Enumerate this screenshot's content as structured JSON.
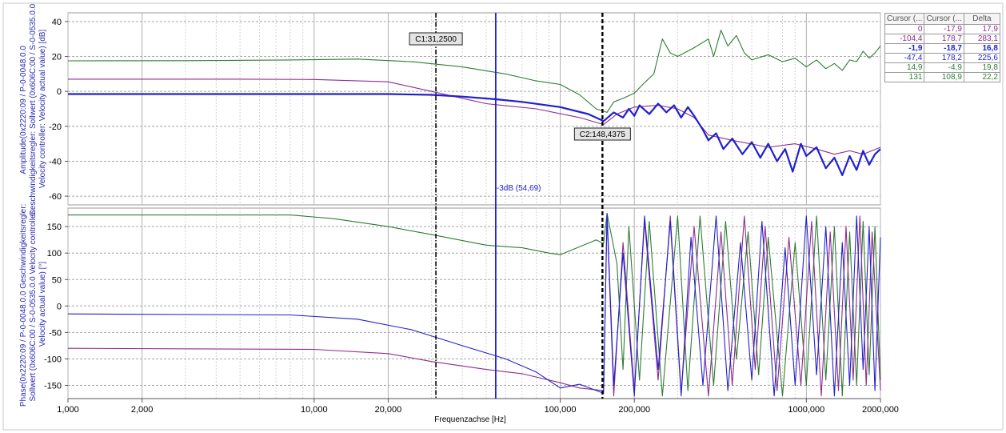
{
  "chart_data": [
    {
      "type": "line",
      "id": "amplitude",
      "x_scale": "log",
      "xlim": [
        1,
        2000
      ],
      "ylim": [
        -65,
        45
      ],
      "y_ticks": [
        40,
        20,
        0,
        -20,
        -40,
        -60
      ],
      "ylabel_lines": [
        "Amplitude(0x2220:09 / P-0-0048.0.0",
        "Geschwindigkeitsregler: Sollwert (0x606C:00 / S-0-0535.0.0",
        "Velocity controller: Velocity actual value) [dB]"
      ],
      "annotation_3db": "-3dB (54,69)",
      "series": [
        {
          "color": "#2e7d32",
          "points": [
            [
              1,
              17.5
            ],
            [
              3,
              17.6
            ],
            [
              8,
              18
            ],
            [
              15,
              18.5
            ],
            [
              25,
              17
            ],
            [
              40,
              14
            ],
            [
              60,
              10
            ],
            [
              80,
              6
            ],
            [
              100,
              4
            ],
            [
              120,
              -2
            ],
            [
              140,
              -10
            ],
            [
              155,
              -12
            ],
            [
              165,
              -6
            ],
            [
              180,
              -4
            ],
            [
              200,
              -1
            ],
            [
              220,
              5
            ],
            [
              240,
              10
            ],
            [
              260,
              30
            ],
            [
              280,
              22
            ],
            [
              300,
              20
            ],
            [
              350,
              25
            ],
            [
              400,
              30
            ],
            [
              420,
              20
            ],
            [
              450,
              35
            ],
            [
              480,
              26
            ],
            [
              520,
              32
            ],
            [
              560,
              22
            ],
            [
              600,
              18
            ],
            [
              700,
              21
            ],
            [
              800,
              17
            ],
            [
              900,
              19
            ],
            [
              1000,
              14
            ],
            [
              1100,
              18
            ],
            [
              1200,
              13
            ],
            [
              1300,
              16
            ],
            [
              1400,
              12
            ],
            [
              1500,
              18
            ],
            [
              1600,
              17
            ],
            [
              1700,
              23
            ],
            [
              1800,
              19
            ],
            [
              1900,
              22
            ],
            [
              2000,
              26
            ]
          ]
        },
        {
          "color": "#8e2d8e",
          "points": [
            [
              1,
              7
            ],
            [
              5,
              7
            ],
            [
              10,
              6.8
            ],
            [
              20,
              5.5
            ],
            [
              30,
              0
            ],
            [
              50,
              -7
            ],
            [
              80,
              -10
            ],
            [
              120,
              -15
            ],
            [
              150,
              -19
            ],
            [
              170,
              -13
            ],
            [
              200,
              -9
            ],
            [
              250,
              -8
            ],
            [
              300,
              -10
            ],
            [
              350,
              -15
            ],
            [
              400,
              -25
            ],
            [
              500,
              -28
            ],
            [
              700,
              -32
            ],
            [
              900,
              -30
            ],
            [
              1100,
              -33
            ],
            [
              1300,
              -36
            ],
            [
              1500,
              -34
            ],
            [
              1700,
              -36
            ],
            [
              2000,
              -32
            ]
          ]
        },
        {
          "color": "#2020d0",
          "width": 2.2,
          "points": [
            [
              1,
              -1.5
            ],
            [
              20,
              -1.5
            ],
            [
              30,
              -2
            ],
            [
              40,
              -3
            ],
            [
              54.69,
              -4.5
            ],
            [
              70,
              -6
            ],
            [
              100,
              -9
            ],
            [
              130,
              -13
            ],
            [
              150,
              -17
            ],
            [
              165,
              -12
            ],
            [
              180,
              -15
            ],
            [
              190,
              -10
            ],
            [
              200,
              -14
            ],
            [
              210,
              -8
            ],
            [
              230,
              -13
            ],
            [
              250,
              -7
            ],
            [
              270,
              -12
            ],
            [
              290,
              -8
            ],
            [
              310,
              -15
            ],
            [
              330,
              -9
            ],
            [
              350,
              -14
            ],
            [
              380,
              -22
            ],
            [
              400,
              -28
            ],
            [
              430,
              -24
            ],
            [
              460,
              -33
            ],
            [
              500,
              -27
            ],
            [
              550,
              -36
            ],
            [
              600,
              -29
            ],
            [
              650,
              -38
            ],
            [
              700,
              -30
            ],
            [
              760,
              -40
            ],
            [
              820,
              -33
            ],
            [
              880,
              -46
            ],
            [
              950,
              -30
            ],
            [
              1000,
              -37
            ],
            [
              1100,
              -32
            ],
            [
              1200,
              -44
            ],
            [
              1300,
              -38
            ],
            [
              1400,
              -48
            ],
            [
              1500,
              -37
            ],
            [
              1600,
              -45
            ],
            [
              1700,
              -34
            ],
            [
              1800,
              -42
            ],
            [
              1900,
              -36
            ],
            [
              2000,
              -33
            ]
          ]
        }
      ]
    },
    {
      "type": "line",
      "id": "phase",
      "x_scale": "log",
      "xlim": [
        1,
        2000
      ],
      "ylim": [
        -175,
        185
      ],
      "y_ticks": [
        150,
        100,
        50,
        0,
        -50,
        -100,
        -150
      ],
      "xlabel": "Frequenzachse [Hz]",
      "x_ticks": [
        [
          1,
          "1,000"
        ],
        [
          2,
          "2,000"
        ],
        [
          10,
          "10,000"
        ],
        [
          20,
          "20,000"
        ],
        [
          100,
          "100,000"
        ],
        [
          200,
          "200,000"
        ],
        [
          1000,
          "1000,000"
        ],
        [
          2000,
          "2000,000"
        ]
      ],
      "ylabel_lines": [
        "Phase(0x2220:09 / P-0-0048.0.0 Geschwindigkeitsregler:",
        "Sollwert (0x606C:00 / S-0-0535.0.0 Velocity controller:",
        "Velocity actual value) [°]"
      ],
      "series": [
        {
          "color": "#2e7d32",
          "points": [
            [
              1,
              172
            ],
            [
              8,
              172
            ],
            [
              12,
              165
            ],
            [
              20,
              150
            ],
            [
              30,
              135
            ],
            [
              50,
              115
            ],
            [
              70,
              110
            ],
            [
              90,
              100
            ],
            [
              100,
              97
            ],
            [
              120,
              112
            ],
            [
              140,
              125
            ],
            [
              150,
              118
            ],
            [
              155,
              175
            ],
            [
              170,
              80
            ],
            [
              180,
              -120
            ],
            [
              190,
              150
            ],
            [
              210,
              -140
            ],
            [
              230,
              160
            ],
            [
              260,
              -170
            ],
            [
              300,
              170
            ],
            [
              330,
              -160
            ],
            [
              370,
              170
            ],
            [
              420,
              -150
            ],
            [
              470,
              160
            ],
            [
              520,
              -100
            ],
            [
              580,
              140
            ],
            [
              640,
              -130
            ],
            [
              700,
              130
            ],
            [
              800,
              -170
            ],
            [
              900,
              120
            ],
            [
              1000,
              -150
            ],
            [
              1100,
              170
            ],
            [
              1200,
              -140
            ],
            [
              1300,
              150
            ],
            [
              1400,
              -170
            ],
            [
              1500,
              140
            ],
            [
              1600,
              -150
            ],
            [
              1700,
              160
            ],
            [
              1800,
              -130
            ],
            [
              1900,
              150
            ],
            [
              2000,
              -140
            ]
          ]
        },
        {
          "color": "#8e2d8e",
          "points": [
            [
              1,
              -80
            ],
            [
              10,
              -82
            ],
            [
              20,
              -90
            ],
            [
              30,
              -105
            ],
            [
              50,
              -120
            ],
            [
              70,
              -128
            ],
            [
              100,
              -145
            ],
            [
              120,
              -155
            ],
            [
              150,
              -160
            ],
            [
              155,
              170
            ],
            [
              165,
              -170
            ],
            [
              180,
              120
            ],
            [
              200,
              -160
            ],
            [
              220,
              160
            ],
            [
              250,
              -140
            ],
            [
              280,
              170
            ],
            [
              310,
              -165
            ],
            [
              350,
              150
            ],
            [
              400,
              -170
            ],
            [
              450,
              140
            ],
            [
              500,
              -150
            ],
            [
              560,
              170
            ],
            [
              620,
              -120
            ],
            [
              680,
              150
            ],
            [
              760,
              -160
            ],
            [
              850,
              130
            ],
            [
              950,
              -150
            ],
            [
              1050,
              160
            ],
            [
              1150,
              -170
            ],
            [
              1250,
              140
            ],
            [
              1350,
              -160
            ],
            [
              1450,
              150
            ],
            [
              1550,
              -140
            ],
            [
              1650,
              170
            ],
            [
              1750,
              -150
            ],
            [
              1850,
              140
            ],
            [
              2000,
              -160
            ]
          ]
        },
        {
          "color": "#2020d0",
          "points": [
            [
              1,
              -15
            ],
            [
              8,
              -17
            ],
            [
              15,
              -25
            ],
            [
              25,
              -45
            ],
            [
              40,
              -75
            ],
            [
              60,
              -100
            ],
            [
              80,
              -125
            ],
            [
              100,
              -155
            ],
            [
              120,
              -148
            ],
            [
              150,
              -165
            ],
            [
              155,
              175
            ],
            [
              165,
              -150
            ],
            [
              180,
              100
            ],
            [
              200,
              -170
            ],
            [
              220,
              170
            ],
            [
              250,
              -120
            ],
            [
              280,
              160
            ],
            [
              310,
              -170
            ],
            [
              340,
              130
            ],
            [
              380,
              -150
            ],
            [
              430,
              170
            ],
            [
              480,
              -160
            ],
            [
              540,
              120
            ],
            [
              600,
              -140
            ],
            [
              660,
              160
            ],
            [
              740,
              -170
            ],
            [
              820,
              110
            ],
            [
              900,
              -150
            ],
            [
              1000,
              170
            ],
            [
              1100,
              -130
            ],
            [
              1200,
              150
            ],
            [
              1300,
              -170
            ],
            [
              1400,
              120
            ],
            [
              1500,
              -150
            ],
            [
              1600,
              170
            ],
            [
              1700,
              -120
            ],
            [
              1800,
              150
            ],
            [
              1900,
              -160
            ],
            [
              2000,
              130
            ]
          ]
        }
      ]
    }
  ],
  "cursors": {
    "c1": {
      "x": 31.25,
      "label": "C1:31,2500"
    },
    "c2": {
      "x": 148.4375,
      "label": "C2:148,4375"
    },
    "minus3db": {
      "x": 54.69
    }
  },
  "cursor_table": {
    "headers": [
      "Cursor (...",
      "Cursor (...",
      "Delta"
    ],
    "rows": [
      {
        "values": [
          "0",
          "-17,9",
          "17,9"
        ],
        "color": "#8e2d8e",
        "bold": false
      },
      {
        "values": [
          "-104,4",
          "178,7",
          "283,1"
        ],
        "color": "#8e2d8e",
        "bold": false
      },
      {
        "values": [
          "-1,9",
          "-18,7",
          "16,8"
        ],
        "color": "#2020d0",
        "bold": true
      },
      {
        "values": [
          "-47,4",
          "178,2",
          "225,6"
        ],
        "color": "#2020d0",
        "bold": false
      },
      {
        "values": [
          "14,9",
          "-4,9",
          "19,8"
        ],
        "color": "#2e7d32",
        "bold": false
      },
      {
        "values": [
          "131",
          "108,9",
          "22,2"
        ],
        "color": "#2e7d32",
        "bold": false
      }
    ]
  }
}
